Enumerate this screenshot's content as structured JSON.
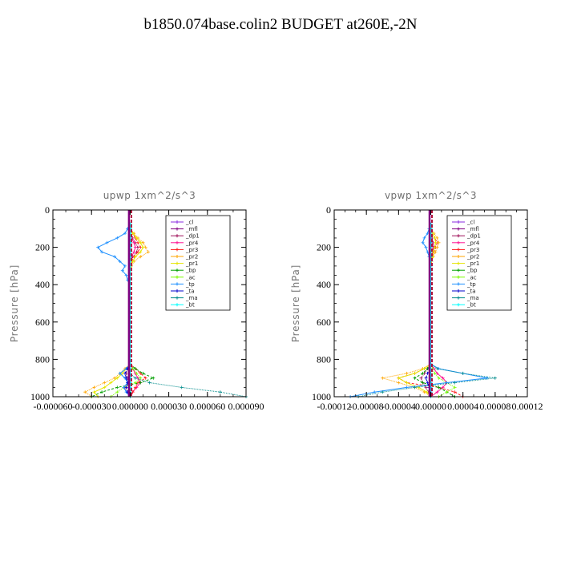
{
  "title": "b1850.074base.colin2  BUDGET at260E,-2N",
  "chart_data": [
    {
      "type": "line",
      "title": "upwp   1xm^2/s^3",
      "ylabel": "Pressure [hPa]",
      "xlabel": "",
      "xlim": [
        -6e-05,
        9e-05
      ],
      "ylim": [
        1000,
        0
      ],
      "xticks": [
        -6e-05,
        -3e-05,
        0.0,
        3e-05,
        6e-05,
        9e-05
      ],
      "xtick_labels": [
        "-0.000060",
        "-0.000030",
        "0.000000",
        "0.000030",
        "0.000060",
        "0.000090"
      ],
      "yticks": [
        0,
        200,
        400,
        600,
        800,
        1000
      ],
      "ytick_labels": [
        "0",
        "200",
        "400",
        "600",
        "800",
        "1000"
      ],
      "grid": false,
      "legend": "top-right",
      "y": [
        75,
        100,
        125,
        150,
        175,
        200,
        225,
        250,
        275,
        300,
        325,
        350,
        375,
        400,
        500,
        600,
        700,
        800,
        825,
        850,
        875,
        900,
        925,
        950,
        975,
        1000
      ],
      "series": [
        {
          "name": "_cl",
          "color": "#8a2be2",
          "values": [
            0,
            0,
            0,
            0,
            0,
            0,
            0,
            0,
            0,
            0,
            0,
            0,
            0,
            0,
            0,
            0,
            0,
            0,
            0,
            0,
            0,
            0,
            0,
            0,
            0,
            0
          ]
        },
        {
          "name": "_mfl",
          "color": "#800080",
          "values": [
            0,
            0,
            0,
            0,
            0,
            0,
            0,
            0,
            0,
            0,
            0,
            0,
            0,
            0,
            0,
            0,
            0,
            0,
            0,
            0,
            0,
            0,
            0,
            0,
            0,
            0
          ]
        },
        {
          "name": "_dp1",
          "color": "#a0105a",
          "values": [
            0,
            0,
            0,
            2e-06,
            4e-06,
            6e-06,
            5e-06,
            2e-06,
            0,
            0,
            0,
            0,
            0,
            0,
            0,
            0,
            0,
            0,
            0,
            -2e-06,
            -3e-06,
            -2e-06,
            -1e-06,
            -4e-06,
            -2e-06,
            0
          ]
        },
        {
          "name": "_pr4",
          "color": "#ff1493",
          "values": [
            0,
            0,
            0,
            1e-06,
            3e-06,
            4e-06,
            3e-06,
            1e-06,
            0,
            0,
            0,
            0,
            0,
            0,
            0,
            0,
            0,
            0,
            0,
            2e-06,
            4e-06,
            6e-06,
            8e-06,
            5e-06,
            2e-06,
            0
          ]
        },
        {
          "name": "_pr3",
          "color": "#ff2020",
          "values": [
            0,
            0,
            2e-06,
            4e-06,
            6e-06,
            8e-06,
            6e-06,
            3e-06,
            1e-06,
            0,
            0,
            0,
            0,
            0,
            0,
            0,
            0,
            0,
            0,
            4e-06,
            8e-06,
            1.2e-05,
            6e-06,
            4e-06,
            2e-06,
            0
          ]
        },
        {
          "name": "_pr2",
          "color": "#ffa500",
          "values": [
            0,
            0,
            3e-06,
            6e-06,
            1e-05,
            1.2e-05,
            1.4e-05,
            8e-06,
            3e-06,
            1e-06,
            0,
            0,
            0,
            0,
            0,
            0,
            0,
            0,
            0,
            -4e-06,
            -8e-06,
            -1.2e-05,
            -2e-05,
            -2.8e-05,
            -3.5e-05,
            -3e-05
          ]
        },
        {
          "name": "_pr1",
          "color": "#e6e600",
          "values": [
            0,
            0,
            2e-06,
            5e-06,
            8e-06,
            1e-05,
            8e-06,
            4e-06,
            2e-06,
            0,
            0,
            0,
            0,
            0,
            0,
            0,
            0,
            0,
            0,
            -3e-06,
            -6e-06,
            -1e-05,
            -1.5e-05,
            -2e-05,
            -2.8e-05,
            -2.5e-05
          ]
        },
        {
          "name": "_bp",
          "color": "#00a000",
          "values": [
            0,
            0,
            0,
            0,
            0,
            0,
            0,
            0,
            0,
            0,
            0,
            0,
            0,
            0,
            0,
            0,
            0,
            0,
            0,
            4e-06,
            1e-05,
            1.8e-05,
            8e-06,
            -1e-05,
            -2.2e-05,
            -3e-05
          ]
        },
        {
          "name": "_ac",
          "color": "#7cfc00",
          "values": [
            0,
            0,
            0,
            0,
            0,
            0,
            0,
            0,
            0,
            0,
            0,
            0,
            0,
            0,
            0,
            0,
            0,
            0,
            0,
            2e-06,
            5e-06,
            8e-06,
            4e-06,
            -5e-06,
            -1e-05,
            -1.5e-05
          ]
        },
        {
          "name": "_tp",
          "color": "#1e90ff",
          "values": [
            0,
            -2e-06,
            -4e-06,
            -1e-05,
            -1.8e-05,
            -2.5e-05,
            -2.2e-05,
            -1.2e-05,
            -8e-06,
            -4e-06,
            -6e-06,
            -3e-06,
            -2e-06,
            0,
            0,
            0,
            0,
            0,
            0,
            -3e-06,
            -8e-06,
            -4e-06,
            -2e-06,
            -5e-06,
            -3e-06,
            0
          ]
        },
        {
          "name": "_ta",
          "color": "#0000cd",
          "values": [
            0,
            0,
            0,
            0,
            0,
            0,
            0,
            0,
            0,
            0,
            0,
            0,
            0,
            0,
            0,
            0,
            0,
            0,
            0,
            -2e-06,
            -4e-06,
            -3e-06,
            -2e-06,
            -3e-06,
            -2e-06,
            0
          ]
        },
        {
          "name": "_ma",
          "color": "#008b8b",
          "values": [
            0,
            0,
            0,
            0,
            0,
            0,
            0,
            0,
            0,
            0,
            0,
            0,
            0,
            0,
            0,
            0,
            0,
            0,
            0,
            0,
            0,
            4e-06,
            1.5e-05,
            4e-05,
            7e-05,
            9e-05
          ]
        },
        {
          "name": "_bt",
          "color": "#00ffff",
          "values": [
            0,
            0,
            0,
            0,
            0,
            0,
            0,
            0,
            0,
            0,
            0,
            0,
            0,
            0,
            0,
            0,
            0,
            0,
            0,
            0,
            0,
            0,
            0,
            0,
            0,
            0
          ]
        }
      ]
    },
    {
      "type": "line",
      "title": "vpwp   1xm^2/s^3",
      "ylabel": "Pressure [hPa]",
      "xlabel": "",
      "xlim": [
        -0.00012,
        0.00012
      ],
      "ylim": [
        1000,
        0
      ],
      "xticks": [
        -0.00012,
        -8e-05,
        -4e-05,
        0.0,
        4e-05,
        8e-05,
        0.00012
      ],
      "xtick_labels": [
        "-0.00012",
        "-0.00008",
        "-0.00004",
        "0.00000",
        "0.00004",
        "0.00008",
        "0.00012"
      ],
      "yticks": [
        0,
        200,
        400,
        600,
        800,
        1000
      ],
      "ytick_labels": [
        "0",
        "200",
        "400",
        "600",
        "800",
        "1000"
      ],
      "grid": false,
      "legend": "top-right",
      "y": [
        75,
        100,
        125,
        150,
        175,
        200,
        225,
        250,
        275,
        300,
        325,
        350,
        375,
        400,
        500,
        600,
        700,
        800,
        825,
        850,
        875,
        900,
        925,
        950,
        975,
        1000
      ],
      "series": [
        {
          "name": "_cl",
          "color": "#8a2be2",
          "values": [
            0,
            0,
            0,
            0,
            0,
            0,
            0,
            0,
            0,
            0,
            0,
            0,
            0,
            0,
            0,
            0,
            0,
            0,
            0,
            0,
            0,
            0,
            0,
            0,
            0,
            0
          ]
        },
        {
          "name": "_mfl",
          "color": "#800080",
          "values": [
            0,
            0,
            0,
            0,
            0,
            0,
            0,
            0,
            0,
            0,
            0,
            0,
            0,
            0,
            0,
            0,
            0,
            0,
            0,
            0,
            0,
            0,
            0,
            0,
            0,
            0
          ]
        },
        {
          "name": "_dp1",
          "color": "#a0105a",
          "values": [
            0,
            0,
            0,
            2e-06,
            3e-06,
            4e-06,
            3e-06,
            1e-06,
            0,
            0,
            0,
            0,
            0,
            0,
            0,
            0,
            0,
            0,
            0,
            -4e-06,
            -8e-06,
            -1.2e-05,
            -1e-05,
            -6e-06,
            -3e-06,
            0
          ]
        },
        {
          "name": "_pr4",
          "color": "#ff1493",
          "values": [
            0,
            0,
            0,
            1e-06,
            2e-06,
            3e-06,
            2e-06,
            1e-06,
            0,
            0,
            0,
            0,
            0,
            0,
            0,
            0,
            0,
            0,
            0,
            4e-06,
            8e-06,
            1.5e-05,
            2e-05,
            1.5e-05,
            8e-06,
            0
          ]
        },
        {
          "name": "_pr3",
          "color": "#ff2020",
          "values": [
            0,
            0,
            2e-06,
            5e-06,
            8e-06,
            6e-06,
            4e-06,
            2e-06,
            1e-06,
            0,
            0,
            0,
            0,
            0,
            0,
            0,
            0,
            0,
            0,
            -8e-06,
            -2e-05,
            -4e-05,
            -3e-05,
            1e-05,
            3e-05,
            4e-05
          ]
        },
        {
          "name": "_pr2",
          "color": "#ffa500",
          "values": [
            0,
            0,
            4e-06,
            8e-06,
            1e-05,
            8e-06,
            6e-06,
            3e-06,
            1e-06,
            0,
            0,
            0,
            0,
            0,
            0,
            0,
            0,
            0,
            0,
            -1e-05,
            -3e-05,
            -6e-05,
            -4e-05,
            -2e-05,
            -8e-06,
            0
          ]
        },
        {
          "name": "_pr1",
          "color": "#e6e600",
          "values": [
            0,
            0,
            2e-06,
            5e-06,
            6e-06,
            5e-06,
            3e-06,
            2e-06,
            0,
            0,
            0,
            0,
            0,
            0,
            0,
            0,
            0,
            0,
            0,
            -8e-06,
            -2e-05,
            -4e-05,
            -3e-05,
            -1.5e-05,
            -5e-06,
            0
          ]
        },
        {
          "name": "_bp",
          "color": "#00a000",
          "values": [
            0,
            0,
            0,
            0,
            0,
            0,
            0,
            0,
            0,
            0,
            0,
            0,
            0,
            0,
            0,
            0,
            0,
            0,
            0,
            -4e-06,
            -1e-05,
            -2e-05,
            -1e-05,
            1e-05,
            2e-05,
            3e-05
          ]
        },
        {
          "name": "_ac",
          "color": "#7cfc00",
          "values": [
            0,
            0,
            0,
            0,
            0,
            0,
            0,
            0,
            0,
            0,
            0,
            0,
            0,
            0,
            0,
            0,
            0,
            0,
            0,
            2e-06,
            5e-06,
            1e-05,
            2e-05,
            3e-05,
            2e-05,
            1e-05
          ]
        },
        {
          "name": "_tp",
          "color": "#1e90ff",
          "values": [
            0,
            -2e-06,
            -4e-06,
            -8e-06,
            -1e-05,
            -6e-06,
            -4e-06,
            -2e-06,
            0,
            0,
            0,
            0,
            0,
            0,
            0,
            0,
            0,
            0,
            0,
            1e-05,
            4e-05,
            7e-05,
            2e-05,
            -3e-05,
            -7e-05,
            -0.0001
          ]
        },
        {
          "name": "_ta",
          "color": "#0000cd",
          "values": [
            0,
            0,
            0,
            0,
            0,
            0,
            0,
            0,
            0,
            0,
            0,
            0,
            0,
            0,
            0,
            0,
            0,
            0,
            0,
            -2e-06,
            -4e-06,
            -6e-06,
            -4e-06,
            -2e-06,
            0,
            0
          ]
        },
        {
          "name": "_ma",
          "color": "#008b8b",
          "values": [
            0,
            0,
            0,
            0,
            0,
            0,
            0,
            0,
            0,
            0,
            0,
            0,
            0,
            0,
            0,
            0,
            0,
            0,
            0,
            8e-06,
            4e-05,
            8e-05,
            3e-05,
            -2e-05,
            -6e-05,
            -9e-05
          ]
        },
        {
          "name": "_bt",
          "color": "#00ffff",
          "values": [
            0,
            0,
            0,
            0,
            0,
            0,
            0,
            0,
            0,
            0,
            0,
            0,
            0,
            0,
            0,
            0,
            0,
            0,
            0,
            0,
            0,
            0,
            0,
            0,
            0,
            0
          ]
        }
      ]
    }
  ]
}
